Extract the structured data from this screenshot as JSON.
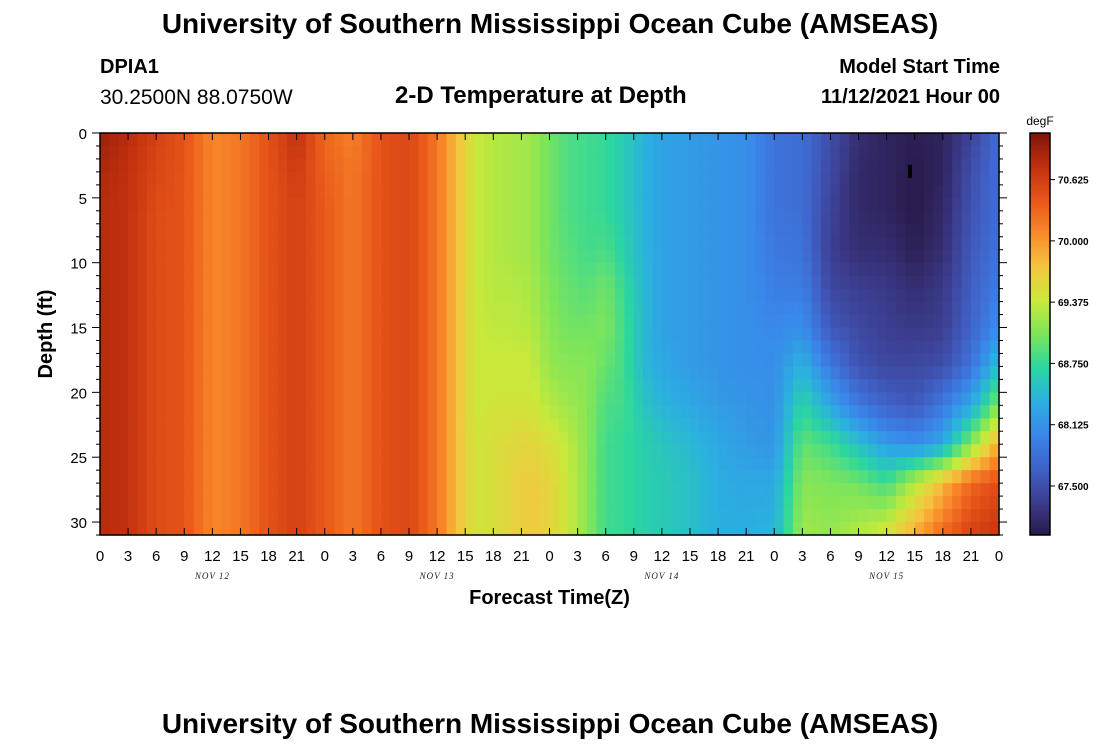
{
  "header": {
    "title": "University of Southern Mississippi Ocean Cube (AMSEAS)",
    "station": "DPIA1",
    "coordinates": "30.2500N  88.0750W",
    "subtitle": "2-D Temperature at Depth",
    "model_start_label": "Model Start Time",
    "model_start_value": "11/12/2021 Hour 00"
  },
  "footer": {
    "title": "University of Southern Mississippi Ocean Cube (AMSEAS)"
  },
  "chart_data": {
    "type": "heatmap",
    "title": "2-D Temperature at Depth",
    "xlabel": "Forecast Time(Z)",
    "ylabel": "Depth (ft)",
    "x_unit": "hours since model start",
    "xlim": [
      0,
      96
    ],
    "ylim": [
      0,
      31
    ],
    "x_tick_labels": [
      "0",
      "3",
      "6",
      "9",
      "12",
      "15",
      "18",
      "21",
      "0",
      "3",
      "6",
      "9",
      "12",
      "15",
      "18",
      "21",
      "0",
      "3",
      "6",
      "9",
      "12",
      "15",
      "18",
      "21",
      "0",
      "3",
      "6",
      "9",
      "12",
      "15",
      "18",
      "21",
      "0"
    ],
    "y_ticks": [
      0,
      5,
      10,
      15,
      20,
      25,
      30
    ],
    "day_labels": [
      {
        "label": "NOV 12",
        "hour": 12
      },
      {
        "label": "NOV 13",
        "hour": 36
      },
      {
        "label": "NOV 14",
        "hour": 60
      },
      {
        "label": "NOV 15",
        "hour": 84
      }
    ],
    "colorbar": {
      "unit": "degF",
      "min": 67.0,
      "max": 71.1,
      "tick_values": [
        70.625,
        70.0,
        69.375,
        68.75,
        68.125,
        67.5
      ],
      "tick_labels": [
        "70.625",
        "70.000",
        "69.375",
        "68.750",
        "68.125",
        "67.500"
      ],
      "colors": [
        "#2a1a4a",
        "#3c3d8f",
        "#4062c8",
        "#3a86ea",
        "#2bb0e0",
        "#2bd6a0",
        "#7ee55a",
        "#c9e93a",
        "#f5c640",
        "#f98a2a",
        "#e8561a",
        "#c0300e",
        "#7d1408"
      ]
    },
    "depth_levels_ft": [
      0,
      3,
      6,
      9,
      12,
      15,
      18,
      21,
      24,
      27,
      31
    ],
    "time_hours": [
      0,
      3,
      6,
      9,
      12,
      15,
      18,
      21,
      24,
      27,
      30,
      33,
      36,
      38,
      40,
      42,
      44,
      46,
      48,
      50,
      52,
      54,
      56,
      58,
      60,
      63,
      66,
      69,
      72,
      75,
      78,
      81,
      84,
      87,
      90,
      93,
      96
    ],
    "temperature_degF": [
      [
        70.95,
        70.85,
        70.8,
        70.8,
        70.8,
        70.8,
        70.8,
        70.8,
        70.8,
        70.8,
        70.8
      ],
      [
        70.8,
        70.75,
        70.75,
        70.75,
        70.75,
        70.75,
        70.75,
        70.75,
        70.75,
        70.75,
        70.75
      ],
      [
        70.6,
        70.55,
        70.5,
        70.5,
        70.5,
        70.5,
        70.5,
        70.5,
        70.5,
        70.5,
        70.5
      ],
      [
        70.45,
        70.45,
        70.45,
        70.45,
        70.45,
        70.45,
        70.45,
        70.45,
        70.45,
        70.45,
        70.45
      ],
      [
        70.1,
        70.1,
        70.1,
        70.1,
        70.1,
        70.1,
        70.1,
        70.1,
        70.1,
        70.1,
        70.1
      ],
      [
        70.2,
        70.2,
        70.2,
        70.2,
        70.2,
        70.2,
        70.2,
        70.2,
        70.2,
        70.2,
        70.2
      ],
      [
        70.45,
        70.45,
        70.45,
        70.45,
        70.45,
        70.45,
        70.45,
        70.45,
        70.45,
        70.45,
        70.45
      ],
      [
        70.75,
        70.65,
        70.6,
        70.6,
        70.6,
        70.6,
        70.6,
        70.6,
        70.6,
        70.6,
        70.6
      ],
      [
        70.3,
        70.35,
        70.4,
        70.4,
        70.4,
        70.4,
        70.4,
        70.4,
        70.4,
        70.4,
        70.4
      ],
      [
        70.15,
        70.2,
        70.2,
        70.2,
        70.2,
        70.2,
        70.2,
        70.2,
        70.2,
        70.2,
        70.2
      ],
      [
        70.45,
        70.45,
        70.45,
        70.45,
        70.45,
        70.45,
        70.45,
        70.45,
        70.45,
        70.45,
        70.45
      ],
      [
        70.55,
        70.55,
        70.55,
        70.55,
        70.55,
        70.55,
        70.55,
        70.55,
        70.55,
        70.55,
        70.55
      ],
      [
        70.2,
        70.2,
        70.2,
        70.2,
        70.2,
        70.2,
        70.2,
        70.2,
        70.2,
        70.2,
        70.2
      ],
      [
        69.8,
        69.8,
        69.8,
        69.8,
        69.8,
        69.8,
        69.8,
        69.8,
        69.8,
        69.8,
        69.8
      ],
      [
        69.4,
        69.4,
        69.4,
        69.4,
        69.4,
        69.4,
        69.4,
        69.4,
        69.45,
        69.45,
        69.45
      ],
      [
        69.3,
        69.3,
        69.3,
        69.3,
        69.3,
        69.35,
        69.4,
        69.45,
        69.5,
        69.5,
        69.5
      ],
      [
        69.25,
        69.25,
        69.25,
        69.25,
        69.3,
        69.35,
        69.4,
        69.45,
        69.55,
        69.6,
        69.6
      ],
      [
        69.2,
        69.2,
        69.2,
        69.2,
        69.25,
        69.3,
        69.4,
        69.45,
        69.6,
        69.7,
        69.7
      ],
      [
        69.0,
        69.0,
        69.0,
        69.0,
        69.05,
        69.1,
        69.15,
        69.3,
        69.5,
        69.6,
        69.6
      ],
      [
        68.85,
        68.85,
        68.85,
        68.9,
        68.95,
        69.0,
        69.1,
        69.2,
        69.35,
        69.4,
        69.4
      ],
      [
        68.8,
        68.8,
        68.8,
        68.8,
        68.9,
        69.0,
        69.1,
        69.1,
        69.1,
        69.1,
        69.1
      ],
      [
        68.75,
        68.75,
        68.75,
        68.85,
        69.0,
        69.05,
        68.95,
        68.85,
        68.8,
        68.8,
        68.8
      ],
      [
        68.6,
        68.6,
        68.6,
        68.65,
        68.75,
        68.8,
        68.8,
        68.8,
        68.75,
        68.75,
        68.75
      ],
      [
        68.4,
        68.4,
        68.4,
        68.4,
        68.45,
        68.45,
        68.45,
        68.55,
        68.65,
        68.65,
        68.65
      ],
      [
        68.25,
        68.25,
        68.25,
        68.25,
        68.25,
        68.25,
        68.3,
        68.4,
        68.55,
        68.6,
        68.6
      ],
      [
        68.2,
        68.2,
        68.2,
        68.2,
        68.2,
        68.2,
        68.2,
        68.3,
        68.45,
        68.5,
        68.5
      ],
      [
        68.15,
        68.15,
        68.15,
        68.15,
        68.15,
        68.15,
        68.15,
        68.2,
        68.3,
        68.35,
        68.35
      ],
      [
        68.1,
        68.1,
        68.1,
        68.1,
        68.1,
        68.1,
        68.1,
        68.15,
        68.2,
        68.3,
        68.35
      ],
      [
        67.85,
        67.85,
        67.85,
        67.9,
        67.95,
        68.05,
        68.1,
        68.1,
        68.15,
        68.3,
        68.4
      ],
      [
        67.8,
        67.8,
        67.8,
        67.85,
        67.95,
        68.1,
        68.4,
        68.7,
        68.95,
        69.1,
        69.2
      ],
      [
        67.5,
        67.45,
        67.4,
        67.35,
        67.45,
        67.6,
        67.9,
        68.3,
        68.8,
        69.05,
        69.15
      ],
      [
        67.2,
        67.15,
        67.15,
        67.2,
        67.35,
        67.45,
        67.55,
        67.9,
        68.5,
        69.0,
        69.3
      ],
      [
        67.1,
        67.1,
        67.1,
        67.2,
        67.3,
        67.35,
        67.45,
        67.7,
        68.2,
        68.8,
        69.5
      ],
      [
        67.05,
        67.0,
        67.0,
        67.05,
        67.2,
        67.3,
        67.45,
        67.6,
        68.1,
        69.3,
        69.9
      ],
      [
        67.1,
        67.1,
        67.15,
        67.2,
        67.3,
        67.35,
        67.5,
        67.9,
        68.3,
        69.8,
        70.3
      ],
      [
        67.4,
        67.5,
        67.55,
        67.6,
        67.65,
        67.7,
        67.85,
        68.3,
        69.1,
        70.3,
        70.6
      ],
      [
        67.8,
        67.8,
        67.8,
        67.85,
        67.95,
        68.1,
        68.5,
        69.1,
        69.9,
        70.5,
        70.7
      ]
    ],
    "marker": {
      "hour": 86.5,
      "depth_ft": 3
    }
  },
  "icons": {
    "colorbar": "color-scale",
    "marker": "station-marker"
  }
}
